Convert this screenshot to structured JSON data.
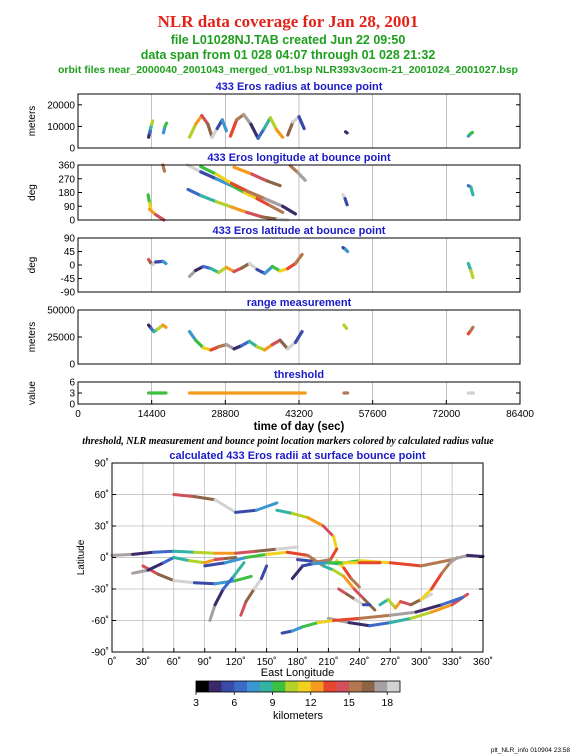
{
  "header": {
    "title": "NLR data coverage for Jan 28, 2001",
    "file_line": "file L01028NJ.TAB created Jun 22 09:50",
    "span_line": "data span from 01 028 04:07 through 01 028 21:32",
    "orbit_line": "orbit files near_2000040_2001043_merged_v01.bsp NLR393v3ocm-21_2001024_2001027.bsp"
  },
  "caption": "threshold, NLR measurement and bounce point location markers colored by calculated radius value",
  "footer": "plt_NLR_info 010904 23:58",
  "colors": {
    "title": "#e2231a",
    "subtitle": "#1ea01e",
    "panel_title": "#1a1ac8",
    "grid": "#999999"
  },
  "colorbar": {
    "label": "kilometers",
    "min": 3,
    "max": 19,
    "ticks": [
      "3",
      "6",
      "9",
      "12",
      "15",
      "18"
    ],
    "tick_values": [
      3,
      6,
      9,
      12,
      15,
      18
    ],
    "stops": [
      "#000000",
      "#3a2a6a",
      "#3a4aa8",
      "#3c6ac8",
      "#3c96d2",
      "#32b4a0",
      "#3cc040",
      "#b4d228",
      "#f0d21e",
      "#f59a1e",
      "#e6462d",
      "#d2505a",
      "#b47850",
      "#8c6446",
      "#a8a0a0",
      "#d2d2d2"
    ]
  },
  "chart_data": [
    {
      "type": "scatter",
      "title": "433 Eros radius at bounce point",
      "ylabel": "meters",
      "xlim": [
        0,
        86400
      ],
      "ylim": [
        0,
        25000
      ],
      "yticks": [
        0,
        10000,
        20000
      ],
      "ytick_labels": [
        "0",
        "10000",
        "20000"
      ],
      "segments": [
        {
          "x": [
            13800,
            14000,
            14200,
            14400,
            14600
          ],
          "y": [
            5000,
            7000,
            9000,
            11000,
            12500
          ]
        },
        {
          "x": [
            16700,
            17000,
            17300
          ],
          "y": [
            7000,
            10000,
            11500
          ]
        },
        {
          "x": [
            21800,
            23000,
            24200,
            25400,
            26200,
            27200,
            28200,
            29000
          ],
          "y": [
            5000,
            11000,
            15000,
            11000,
            5000,
            9000,
            13000,
            8000
          ]
        },
        {
          "x": [
            29800,
            31000,
            32400,
            33800,
            35200,
            36400,
            37600,
            38800,
            40000
          ],
          "y": [
            5500,
            13000,
            15500,
            11000,
            4500,
            9000,
            14000,
            8500,
            5000
          ]
        },
        {
          "x": [
            41000,
            42000,
            43200,
            44200
          ],
          "y": [
            6000,
            12000,
            14500,
            9000
          ]
        },
        {
          "x": [
            52300,
            52600
          ],
          "y": [
            7500,
            7000
          ]
        },
        {
          "x": [
            76300,
            76700,
            77100
          ],
          "y": [
            5500,
            6500,
            7200
          ]
        }
      ]
    },
    {
      "type": "scatter",
      "title": "433 Eros longitude at bounce point",
      "ylabel": "deg",
      "xlim": [
        0,
        86400
      ],
      "ylim": [
        0,
        360
      ],
      "yticks": [
        0,
        90,
        180,
        270,
        360
      ],
      "ytick_labels": [
        "0",
        "90",
        "180",
        "270",
        "360"
      ],
      "segments": [
        {
          "x": [
            13700,
            14000,
            14300
          ],
          "y": [
            165,
            110,
            60
          ]
        },
        {
          "x": [
            14000,
            15200,
            16800
          ],
          "y": [
            70,
            35,
            0
          ]
        },
        {
          "x": [
            16600,
            16900
          ],
          "y": [
            360,
            320
          ]
        },
        {
          "x": [
            21400,
            24000,
            27000,
            30000,
            32500,
            35000,
            37500,
            40000
          ],
          "y": [
            360,
            315,
            270,
            225,
            180,
            140,
            95,
            50
          ]
        },
        {
          "x": [
            21500,
            24000,
            27000,
            30000,
            33000,
            36000,
            39000,
            41000
          ],
          "y": [
            200,
            160,
            120,
            85,
            50,
            20,
            5,
            0
          ]
        },
        {
          "x": [
            24000,
            27000,
            30000,
            33000,
            36500,
            40000,
            42500
          ],
          "y": [
            350,
            300,
            240,
            190,
            140,
            90,
            40
          ]
        },
        {
          "x": [
            30500,
            34000,
            37000,
            39500
          ],
          "y": [
            345,
            300,
            255,
            225
          ]
        },
        {
          "x": [
            41500,
            43000,
            44400
          ],
          "y": [
            355,
            310,
            260
          ]
        },
        {
          "x": [
            51800,
            52200,
            52600
          ],
          "y": [
            165,
            140,
            100
          ]
        },
        {
          "x": [
            76300,
            76800,
            77200
          ],
          "y": [
            225,
            215,
            165
          ]
        }
      ]
    },
    {
      "type": "scatter",
      "title": "433 Eros latitude at bounce point",
      "ylabel": "deg",
      "xlim": [
        0,
        86400
      ],
      "ylim": [
        -90,
        90
      ],
      "yticks": [
        -90,
        -45,
        0,
        45,
        90
      ],
      "ytick_labels": [
        "-90",
        "-45",
        "0",
        "45",
        "90"
      ],
      "segments": [
        {
          "x": [
            13800,
            14200,
            14600,
            15200,
            16600,
            17200
          ],
          "y": [
            18,
            8,
            2,
            10,
            12,
            5
          ]
        },
        {
          "x": [
            21800,
            23000,
            24500,
            26000,
            27500,
            29000,
            30500,
            32000,
            33500,
            35000,
            36500,
            38000,
            39500,
            41000,
            42500,
            43800
          ],
          "y": [
            -38,
            -18,
            -5,
            -12,
            -25,
            -8,
            -22,
            -10,
            5,
            -15,
            -28,
            -5,
            -20,
            -12,
            5,
            35
          ]
        },
        {
          "x": [
            51800,
            52300,
            52700
          ],
          "y": [
            58,
            52,
            45
          ]
        },
        {
          "x": [
            76300,
            76800,
            77200
          ],
          "y": [
            5,
            -18,
            -42
          ]
        }
      ]
    },
    {
      "type": "scatter",
      "title": "range measurement",
      "ylabel": "meters",
      "xlim": [
        0,
        86400
      ],
      "ylim": [
        0,
        50000
      ],
      "yticks": [
        0,
        25000,
        50000
      ],
      "ytick_labels": [
        "0",
        "25000",
        "50000"
      ],
      "segments": [
        {
          "x": [
            13800,
            14300,
            14800,
            15500,
            16600,
            17200
          ],
          "y": [
            36000,
            33000,
            30000,
            32000,
            36000,
            34000
          ]
        },
        {
          "x": [
            21800,
            23000,
            24500,
            26000,
            27500,
            29000,
            30500,
            32000,
            33500,
            35000,
            36500,
            38000,
            39500,
            41000,
            42500,
            43800
          ],
          "y": [
            30000,
            22000,
            15000,
            13000,
            16000,
            18000,
            14000,
            17000,
            21000,
            16000,
            13000,
            18000,
            22000,
            14000,
            20000,
            30000
          ]
        },
        {
          "x": [
            52000,
            52500
          ],
          "y": [
            36000,
            33000
          ]
        },
        {
          "x": [
            76300,
            76800,
            77200
          ],
          "y": [
            28000,
            31000,
            34000
          ]
        }
      ]
    },
    {
      "type": "scatter",
      "title": "threshold",
      "ylabel": "value",
      "xlabel": "time of day (sec)",
      "xlim": [
        0,
        86400
      ],
      "ylim": [
        0,
        6
      ],
      "yticks": [
        0,
        3,
        6
      ],
      "ytick_labels": [
        "0",
        "3",
        "6"
      ],
      "xticks": [
        0,
        14400,
        28800,
        43200,
        57600,
        72000,
        86400
      ],
      "xtick_labels": [
        "0",
        "14400",
        "28800",
        "43200",
        "57600",
        "72000",
        "86400"
      ],
      "segments": [
        {
          "x": [
            13800,
            17200
          ],
          "y": [
            3,
            3
          ]
        },
        {
          "x": [
            21800,
            44400
          ],
          "y": [
            3,
            3
          ]
        },
        {
          "x": [
            52000,
            52700
          ],
          "y": [
            3,
            3
          ]
        },
        {
          "x": [
            76300,
            77300
          ],
          "y": [
            3,
            3
          ]
        }
      ]
    },
    {
      "type": "scatter",
      "title": "calculated 433 Eros radii at surface bounce point",
      "xlabel": "East Longitude",
      "ylabel": "Latitude",
      "xlim": [
        0,
        360
      ],
      "ylim": [
        -90,
        90
      ],
      "xticks": [
        0,
        30,
        60,
        90,
        120,
        150,
        180,
        210,
        240,
        270,
        300,
        330,
        360
      ],
      "xtick_labels": [
        "0˚",
        "30˚",
        "60˚",
        "90˚",
        "120˚",
        "150˚",
        "180˚",
        "210˚",
        "240˚",
        "270˚",
        "300˚",
        "330˚",
        "360˚"
      ],
      "yticks": [
        -90,
        -60,
        -30,
        0,
        30,
        60,
        90
      ],
      "ytick_labels": [
        "-90˚",
        "-60˚",
        "-30˚",
        "0˚",
        "30˚",
        "60˚",
        "90˚"
      ],
      "segments": [
        {
          "x": [
            60,
            80,
            100,
            120,
            140,
            160
          ],
          "y": [
            60,
            58,
            55,
            43,
            45,
            52
          ]
        },
        {
          "x": [
            0,
            20,
            40,
            60,
            80,
            100,
            120,
            140,
            160,
            180
          ],
          "y": [
            2,
            3,
            5,
            6,
            5,
            4,
            4,
            6,
            8,
            10
          ]
        },
        {
          "x": [
            180,
            200,
            220,
            240,
            270,
            300,
            330,
            345,
            360
          ],
          "y": [
            -2,
            -4,
            -6,
            -3,
            -5,
            -8,
            -2,
            2,
            1
          ]
        },
        {
          "x": [
            160,
            175,
            190,
            205,
            215
          ],
          "y": [
            45,
            42,
            38,
            30,
            20
          ]
        },
        {
          "x": [
            215,
            218,
            212,
            200,
            185,
            175
          ],
          "y": [
            20,
            8,
            -2,
            -4,
            -8,
            -20
          ]
        },
        {
          "x": [
            30,
            45,
            60,
            80,
            100,
            120,
            135
          ],
          "y": [
            -8,
            -16,
            -22,
            -24,
            -25,
            -22,
            -18
          ]
        },
        {
          "x": [
            20,
            35,
            50,
            60,
            75,
            90,
            100,
            110,
            120
          ],
          "y": [
            -15,
            -12,
            -5,
            0,
            -3,
            -5,
            -2,
            -1,
            0
          ]
        },
        {
          "x": [
            90,
            110,
            130,
            150,
            170,
            190,
            205
          ],
          "y": [
            -8,
            -5,
            0,
            3,
            5,
            2,
            -8
          ]
        },
        {
          "x": [
            205,
            215,
            225,
            235,
            245,
            255
          ],
          "y": [
            -8,
            -12,
            -18,
            -30,
            -40,
            -50
          ]
        },
        {
          "x": [
            218,
            225,
            232,
            240
          ],
          "y": [
            -3,
            -10,
            -20,
            -28
          ]
        },
        {
          "x": [
            220,
            228,
            236,
            244,
            250
          ],
          "y": [
            -30,
            -35,
            -40,
            -45,
            -45
          ]
        },
        {
          "x": [
            210,
            230,
            250,
            270,
            290,
            310,
            330,
            345
          ],
          "y": [
            -58,
            -62,
            -65,
            -62,
            -58,
            -52,
            -45,
            -35
          ]
        },
        {
          "x": [
            165,
            175,
            185,
            200,
            215,
            240,
            270,
            295,
            320,
            340
          ],
          "y": [
            -72,
            -70,
            -66,
            -62,
            -60,
            -58,
            -55,
            -52,
            -45,
            -38
          ]
        },
        {
          "x": [
            260,
            268,
            275,
            280,
            290,
            300,
            310
          ],
          "y": [
            -45,
            -40,
            -48,
            -42,
            -45,
            -40,
            -35
          ]
        },
        {
          "x": [
            300,
            310,
            320,
            328,
            335
          ],
          "y": [
            -40,
            -30,
            -15,
            -5,
            0
          ]
        },
        {
          "x": [
            125,
            130,
            138,
            145,
            150
          ],
          "y": [
            -55,
            -42,
            -30,
            -20,
            -8
          ]
        },
        {
          "x": [
            95,
            100,
            108,
            118,
            128
          ],
          "y": [
            -60,
            -45,
            -30,
            -18,
            -5
          ]
        },
        {
          "x": [
            185,
            195,
            210,
            225,
            240,
            260
          ],
          "y": [
            -8,
            -6,
            -5,
            -5,
            -5,
            -5
          ]
        }
      ]
    }
  ]
}
